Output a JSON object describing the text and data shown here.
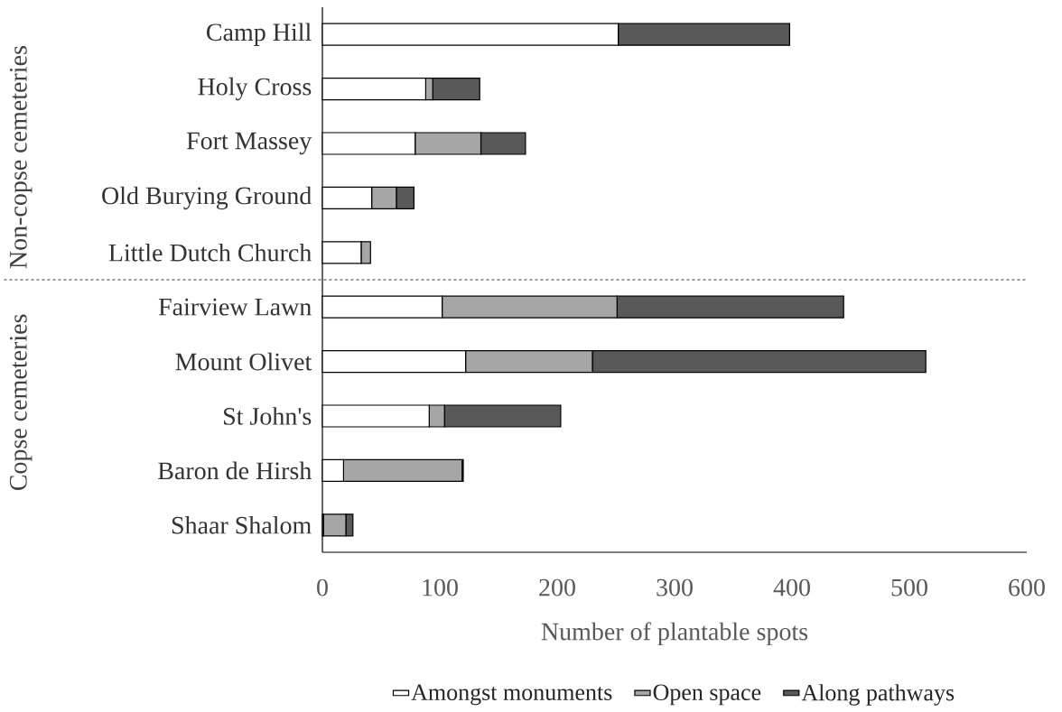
{
  "chart_data": {
    "type": "bar",
    "orientation": "horizontal",
    "stacked": true,
    "xlabel": "Number of plantable spots",
    "categories": [
      "Camp Hill",
      "Holy Cross",
      "Fort Massey",
      "Old Burying Ground",
      "Little Dutch Church",
      "Fairview Lawn",
      "Mount Olivet",
      "St John's",
      "Baron de Hirsh",
      "Shaar Shalom"
    ],
    "series": [
      {
        "name": "Amongst monuments",
        "color": "#ffffff",
        "values": [
          252,
          88,
          79,
          42,
          33,
          102,
          122,
          91,
          18,
          1
        ]
      },
      {
        "name": "Open space",
        "color": "#a6a6a6",
        "values": [
          0,
          6,
          56,
          21,
          8,
          149,
          108,
          13,
          101,
          19
        ]
      },
      {
        "name": "Along pathways",
        "color": "#595959",
        "values": [
          146,
          40,
          38,
          15,
          0,
          193,
          284,
          99,
          1,
          6
        ]
      }
    ],
    "xlim": [
      0,
      600
    ],
    "xticks": [
      0,
      100,
      200,
      300,
      400,
      500,
      600
    ],
    "annotations": [
      "Non-copse cemeteries",
      "Copse cemeteries"
    ],
    "grid": false,
    "legend": "bottom"
  }
}
